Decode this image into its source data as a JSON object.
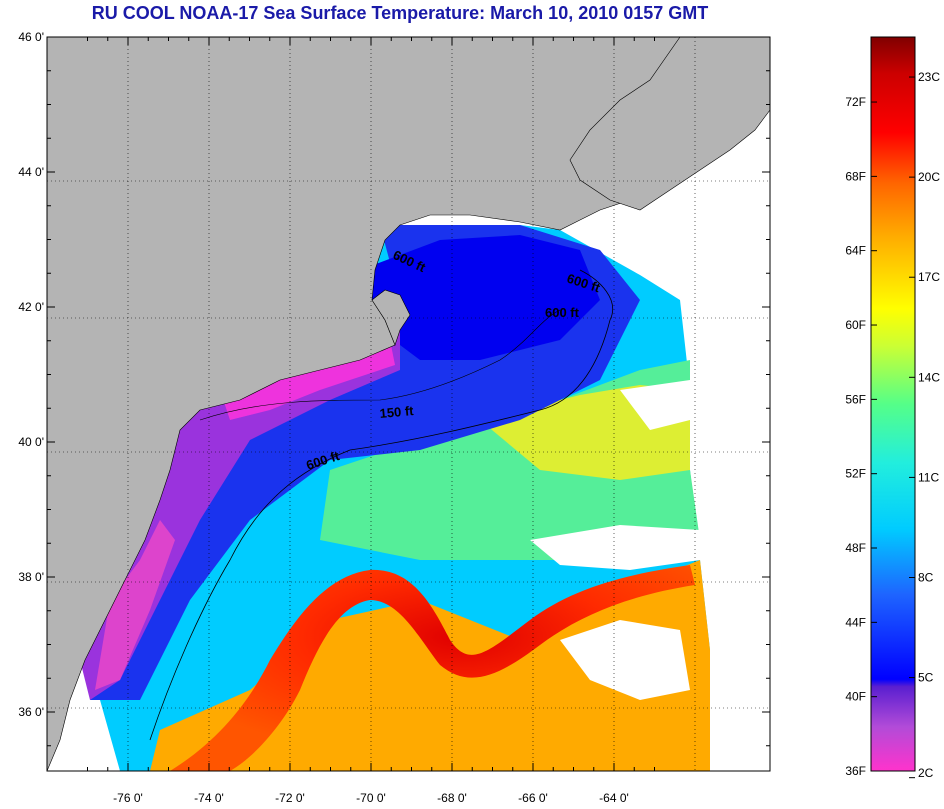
{
  "title": "RU COOL  NOAA-17  Sea Surface Temperature:  March 10, 2010 0157 GMT",
  "lat_ticks": [
    {
      "value": 46,
      "label": "46 0'"
    },
    {
      "value": 44,
      "label": "44 0'"
    },
    {
      "value": 42,
      "label": "42 0'"
    },
    {
      "value": 40,
      "label": "40 0'"
    },
    {
      "value": 38,
      "label": "38 0'"
    },
    {
      "value": 36,
      "label": "36 0'"
    }
  ],
  "lon_ticks": [
    {
      "value": -76,
      "label": "-76 0'"
    },
    {
      "value": -74,
      "label": "-74 0'"
    },
    {
      "value": -72,
      "label": "-72 0'"
    },
    {
      "value": -70,
      "label": "-70 0'"
    },
    {
      "value": -68,
      "label": "-68 0'"
    },
    {
      "value": -66,
      "label": "-66 0'"
    },
    {
      "value": -64,
      "label": "-64 0'"
    }
  ],
  "isobath_labels": [
    "600 ft",
    "600 ft",
    "600 ft",
    "150 ft",
    "600 ft"
  ],
  "colorbar": {
    "fahrenheit": [
      "72F",
      "68F",
      "64F",
      "60F",
      "56F",
      "52F",
      "48F",
      "44F",
      "40F",
      "36F"
    ],
    "celsius": [
      "23C",
      "20C",
      "17C",
      "14C",
      "11C",
      "8C",
      "5C",
      "2C"
    ]
  },
  "colors": {
    "title": "#1a1aa8",
    "land": "#b4b4b4",
    "cloud": "#ffffff"
  }
}
